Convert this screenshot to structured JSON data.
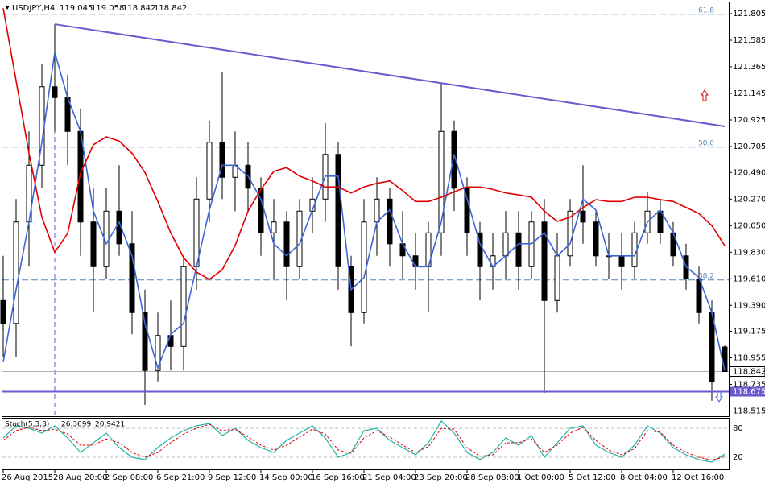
{
  "chart_data": {
    "type": "candlestick",
    "symbol": "USDJPY,H4",
    "categories": [
      "26 Aug 2015",
      null,
      null,
      null,
      "28 Aug 20:00",
      null,
      null,
      null,
      "2 Sep 08:00",
      null,
      null,
      null,
      "6 Sep 21:00",
      null,
      null,
      null,
      "9 Sep 12:00",
      null,
      null,
      null,
      "14 Sep 00:00",
      null,
      null,
      null,
      "16 Sep 16:00",
      null,
      null,
      null,
      "21 Sep 04:00",
      null,
      null,
      null,
      "23 Sep 20:00",
      null,
      null,
      null,
      "28 Sep 08:00",
      null,
      null,
      null,
      "1 Oct 00:00",
      null,
      null,
      null,
      "5 Oct 12:00",
      null,
      null,
      null,
      "8 Oct 04:00",
      null,
      null,
      null,
      "12 Oct 16:00",
      null,
      null,
      null,
      null
    ],
    "open": [
      119.43,
      119.24,
      120.08,
      120.55,
      121.2,
      121.11,
      120.83,
      120.08,
      119.71,
      120.17,
      119.9,
      119.33,
      118.85,
      119.14,
      119.05,
      119.71,
      120.27,
      120.74,
      120.45,
      120.55,
      120.36,
      119.99,
      120.08,
      119.71,
      120.17,
      120.27,
      120.64,
      119.71,
      119.33,
      120.08,
      120.27,
      119.9,
      119.8,
      119.71,
      119.99,
      120.83,
      120.36,
      119.99,
      119.71,
      119.8,
      119.99,
      119.71,
      120.08,
      119.43,
      119.8,
      120.17,
      120.08,
      119.8,
      119.8,
      119.71,
      119.99,
      120.17,
      119.99,
      119.8,
      119.61,
      119.33,
      119.045
    ],
    "high": [
      119.8,
      120.27,
      120.83,
      121.39,
      121.718,
      121.3,
      121.02,
      120.36,
      120.36,
      120.55,
      120.17,
      119.52,
      119.33,
      119.43,
      119.8,
      120.45,
      120.92,
      121.32,
      120.83,
      120.74,
      120.45,
      120.27,
      120.17,
      120.27,
      120.45,
      120.9,
      120.74,
      119.8,
      120.27,
      120.45,
      120.36,
      120.17,
      119.99,
      120.08,
      121.23,
      120.92,
      120.45,
      120.08,
      119.99,
      120.17,
      120.17,
      120.17,
      120.27,
      119.99,
      120.27,
      120.55,
      120.17,
      119.99,
      119.99,
      120.08,
      120.33,
      120.27,
      120.08,
      119.9,
      119.71,
      119.43,
      119.058
    ],
    "low": [
      118.96,
      118.96,
      119.71,
      120.36,
      120.83,
      120.55,
      119.8,
      119.33,
      119.61,
      119.8,
      119.15,
      118.565,
      118.76,
      118.85,
      118.85,
      119.52,
      120.08,
      120.27,
      120.17,
      120.17,
      119.8,
      119.61,
      119.43,
      119.61,
      119.99,
      120.08,
      119.52,
      119.05,
      119.24,
      119.8,
      119.71,
      119.61,
      119.52,
      119.33,
      119.8,
      120.17,
      119.8,
      119.43,
      119.52,
      119.61,
      119.52,
      119.61,
      118.665,
      119.33,
      119.71,
      119.9,
      119.71,
      119.61,
      119.52,
      119.61,
      119.9,
      119.9,
      119.71,
      119.52,
      119.24,
      118.6,
      118.842
    ],
    "close": [
      119.24,
      120.08,
      120.55,
      121.2,
      121.11,
      120.83,
      120.08,
      119.71,
      120.17,
      119.9,
      119.33,
      118.85,
      119.14,
      119.05,
      119.71,
      120.27,
      120.74,
      120.45,
      120.55,
      120.36,
      119.99,
      120.08,
      119.71,
      120.17,
      120.27,
      120.64,
      119.71,
      119.33,
      120.08,
      120.27,
      119.9,
      119.8,
      119.71,
      119.99,
      120.83,
      120.36,
      119.99,
      119.71,
      119.8,
      119.99,
      119.71,
      120.08,
      119.43,
      119.8,
      120.17,
      120.08,
      119.8,
      119.8,
      119.71,
      119.99,
      120.17,
      119.99,
      119.8,
      119.61,
      119.33,
      118.76,
      118.842
    ],
    "lines": [
      {
        "color": "#3c66d8",
        "values": [
          118.92,
          119.52,
          120.08,
          120.74,
          121.485,
          121.11,
          120.83,
          120.17,
          119.9,
          120.08,
          119.8,
          119.24,
          118.87,
          119.15,
          119.24,
          119.71,
          120.18,
          120.55,
          120.55,
          120.46,
          120.27,
          119.9,
          119.8,
          119.9,
          120.18,
          120.46,
          120.46,
          119.52,
          119.62,
          120.08,
          120.18,
          119.9,
          119.71,
          119.71,
          120.08,
          120.64,
          120.27,
          119.9,
          119.71,
          119.8,
          119.9,
          119.9,
          119.99,
          119.8,
          119.9,
          120.27,
          120.18,
          119.8,
          119.8,
          119.8,
          120.08,
          120.18,
          119.99,
          119.71,
          119.62,
          119.33,
          118.85
        ]
      },
      {
        "color": "#e00000",
        "values": [
          121.85,
          121.25,
          120.65,
          120.12,
          119.83,
          119.985,
          120.485,
          120.72,
          120.785,
          120.75,
          120.65,
          120.49,
          120.25,
          119.99,
          119.785,
          119.665,
          119.605,
          119.685,
          119.885,
          120.17,
          120.35,
          120.5,
          120.53,
          120.46,
          120.42,
          120.37,
          120.37,
          120.32,
          120.37,
          120.4,
          120.42,
          120.34,
          120.25,
          120.25,
          120.285,
          120.33,
          120.37,
          120.37,
          120.35,
          120.32,
          120.305,
          120.285,
          120.17,
          120.085,
          120.12,
          120.2,
          120.265,
          120.25,
          120.25,
          120.285,
          120.285,
          120.265,
          120.25,
          120.2,
          120.15,
          120.05,
          119.885
        ]
      }
    ],
    "trendline": {
      "x": [
        4,
        56
      ],
      "values": [
        121.718,
        120.872
      ],
      "color": "#6a5acd"
    },
    "support": {
      "value": 118.675,
      "label": "118.675",
      "color": "#6a5acd"
    },
    "fib_levels": [
      {
        "level": "61.8",
        "price": 121.8
      },
      {
        "level": "50.0",
        "price": 120.7
      },
      {
        "level": "38.2",
        "price": 119.6
      }
    ],
    "ylim": [
      118.472,
      121.905
    ],
    "yticks": [
      121.805,
      121.585,
      121.365,
      121.145,
      120.925,
      120.705,
      {
        "value": 120.49,
        "label": "120.490"
      },
      {
        "value": 120.27,
        "label": "120.270"
      },
      {
        "value": 120.05,
        "label": "120.050"
      },
      {
        "value": 119.83,
        "label": "119.830"
      },
      {
        "value": 119.61,
        "label": "119.610"
      },
      {
        "value": 119.39,
        "label": "119.390"
      },
      119.175,
      118.955,
      118.735,
      118.515
    ],
    "stochastic": {
      "type": "line",
      "label": "Stoch(5,3,3)",
      "ylim": [
        0,
        100
      ],
      "yticks": [
        80,
        20
      ],
      "main": {
        "color": "#20b2aa",
        "values": [
          60,
          85,
          80,
          70,
          85,
          60,
          30,
          50,
          70,
          40,
          20,
          15,
          40,
          60,
          75,
          85,
          90,
          65,
          80,
          55,
          40,
          30,
          55,
          70,
          85,
          60,
          20,
          30,
          75,
          80,
          55,
          40,
          25,
          50,
          95,
          70,
          30,
          15,
          30,
          60,
          45,
          65,
          20,
          50,
          80,
          85,
          45,
          30,
          20,
          45,
          85,
          70,
          40,
          25,
          15,
          10,
          26.3699
        ]
      },
      "signal": {
        "color": "#e00000",
        "values": [
          55,
          75,
          82,
          75,
          78,
          68,
          45,
          45,
          58,
          50,
          30,
          20,
          30,
          50,
          68,
          80,
          88,
          75,
          78,
          62,
          45,
          35,
          45,
          62,
          78,
          68,
          35,
          28,
          60,
          75,
          62,
          45,
          30,
          42,
          80,
          78,
          40,
          22,
          25,
          50,
          50,
          58,
          30,
          45,
          70,
          82,
          55,
          35,
          25,
          38,
          75,
          72,
          45,
          30,
          20,
          14,
          20.9421
        ]
      }
    }
  }
}
